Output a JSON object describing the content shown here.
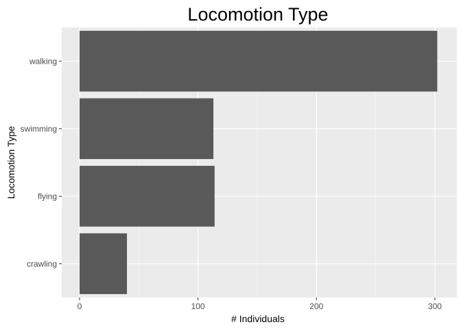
{
  "chart_data": {
    "type": "bar",
    "orientation": "horizontal",
    "title": "Locomotion Type",
    "xlabel": "# Individuals",
    "ylabel": "Locomotion Type",
    "categories": [
      "walking",
      "swimming",
      "flying",
      "crawling"
    ],
    "values": [
      302,
      113,
      114,
      40
    ],
    "xlim": [
      0,
      310
    ],
    "xticks": [
      0,
      100,
      200,
      300
    ],
    "grid": true,
    "legend": "none",
    "colors": {
      "bar": "#595959",
      "panel": "#ebebeb",
      "grid_major": "#ffffff",
      "grid_minor": "#f5f5f5"
    }
  }
}
